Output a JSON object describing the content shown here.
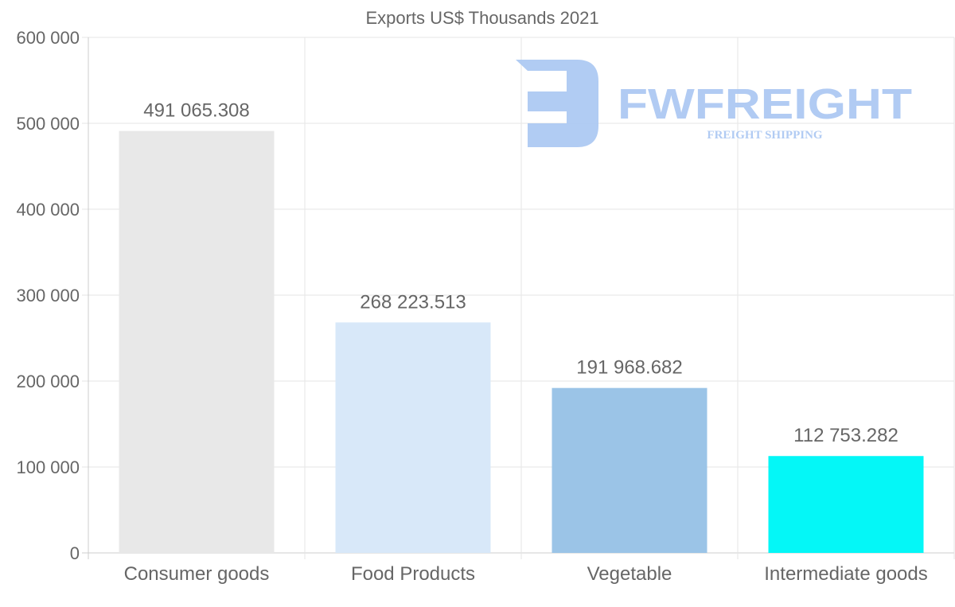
{
  "chart_data": {
    "type": "bar",
    "title": "Exports US$ Thousands 2021",
    "categories": [
      "Consumer goods",
      "Food Products",
      "Vegetable",
      "Intermediate goods"
    ],
    "values": [
      491065.308,
      268223.513,
      191968.682,
      112753.282
    ],
    "value_labels": [
      "491 065.308",
      "268 223.513",
      "191 968.682",
      "112 753.282"
    ],
    "colors": [
      "#e8e8e8",
      "#d8e8f9",
      "#9bc4e7",
      "#04f7f7"
    ],
    "ylim": [
      0,
      600000
    ],
    "yticks": [
      0,
      100000,
      200000,
      300000,
      400000,
      500000,
      600000
    ],
    "ytick_labels": [
      "0",
      "100 000",
      "200 000",
      "300 000",
      "400 000",
      "500 000",
      "600 000"
    ],
    "xlabel": "",
    "ylabel": "",
    "grid": true,
    "legend": "none"
  },
  "watermark": {
    "brand": "FWFREIGHT",
    "tagline": "FREIGHT SHIPPING",
    "color": "#a9c6f2"
  }
}
